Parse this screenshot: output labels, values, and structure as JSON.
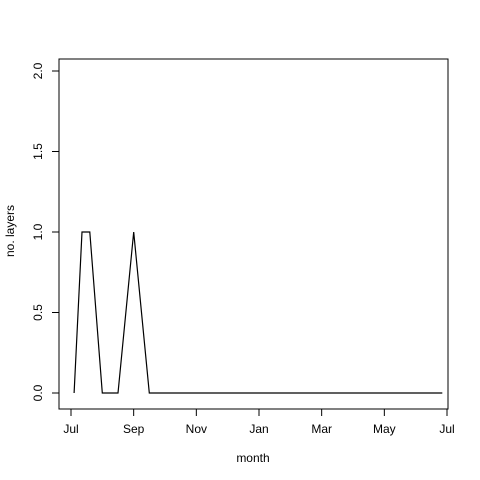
{
  "chart_data": {
    "type": "line",
    "xlabel": "month",
    "ylabel": "no. layers",
    "x_ticks": [
      "Jul",
      "Sep",
      "Nov",
      "Jan",
      "Mar",
      "May",
      "Jul"
    ],
    "y_ticks": [
      "0.0",
      "0.5",
      "1.0",
      "1.5",
      "2.0"
    ],
    "ylim": [
      0,
      2
    ],
    "x_tick_positions_months": [
      0,
      2,
      4,
      6,
      8,
      10,
      12
    ],
    "xlim_months": [
      -0.1,
      12.1
    ],
    "grid": false,
    "series": [
      {
        "x_months": [
          0.1,
          0.35,
          0.6,
          1.0,
          1.5,
          2.0,
          2.5,
          3.0,
          3.5,
          4.0,
          5.0,
          6.0,
          7.0,
          8.0,
          9.0,
          10.0,
          11.0,
          11.85
        ],
        "values": [
          0,
          1,
          1,
          0,
          0,
          1,
          0,
          0,
          0,
          0,
          0,
          0,
          0,
          0,
          0,
          0,
          0,
          0
        ]
      }
    ],
    "line_color": "#000000"
  }
}
